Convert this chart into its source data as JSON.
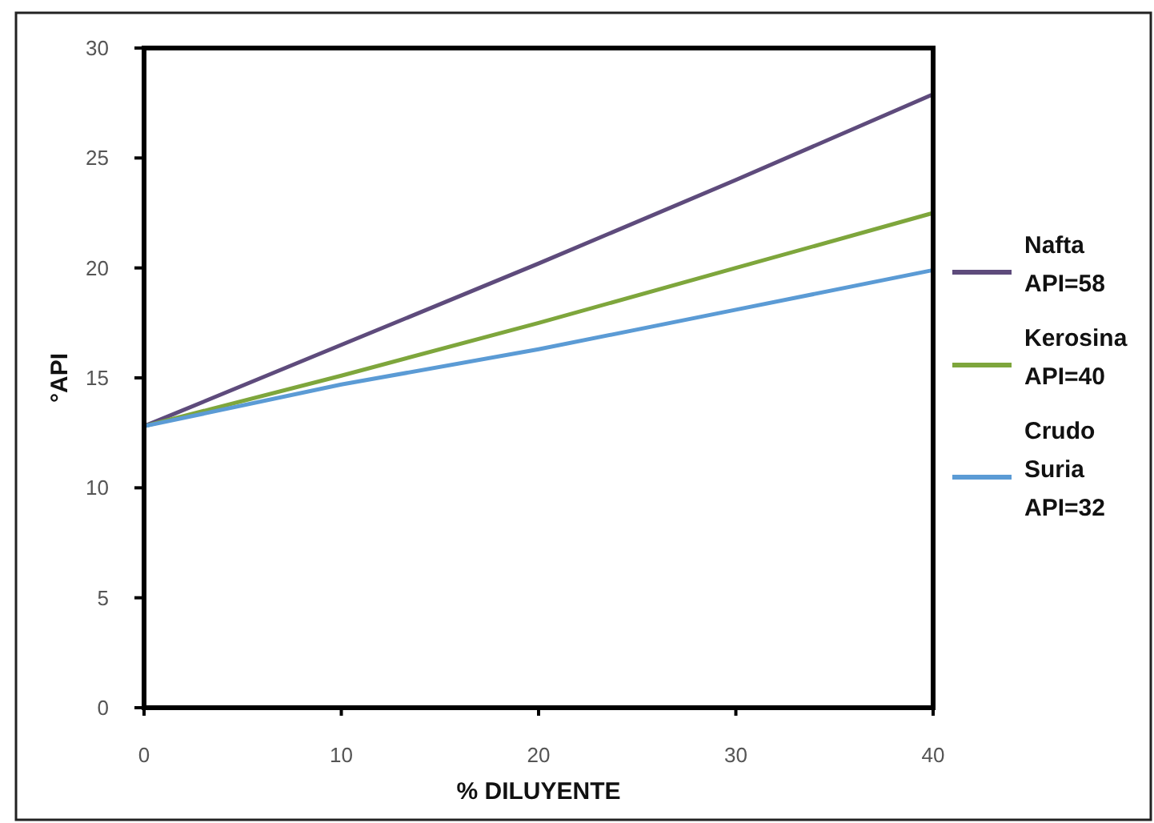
{
  "chart_data": {
    "type": "line",
    "xlabel": "% DILUYENTE",
    "ylabel": "°API",
    "x": [
      0,
      10,
      20,
      30,
      40
    ],
    "xlim": [
      0,
      40
    ],
    "ylim": [
      0,
      30
    ],
    "xticks": [
      0,
      10,
      20,
      30,
      40
    ],
    "yticks": [
      0,
      5,
      10,
      15,
      20,
      25,
      30
    ],
    "grid": false,
    "legend": "right",
    "marker": "none",
    "line_style": "solid",
    "series": [
      {
        "name": "Nafta API=58",
        "color": "#5e4b7c",
        "values": [
          12.8,
          16.5,
          20.2,
          24.0,
          27.9
        ]
      },
      {
        "name": "Kerosina API=40",
        "color": "#7ea63c",
        "values": [
          12.8,
          15.1,
          17.5,
          20.0,
          22.5
        ]
      },
      {
        "name": "Crudo Suria API=32",
        "color": "#5b9bd5",
        "values": [
          12.8,
          14.7,
          16.3,
          18.1,
          19.9
        ]
      }
    ]
  }
}
